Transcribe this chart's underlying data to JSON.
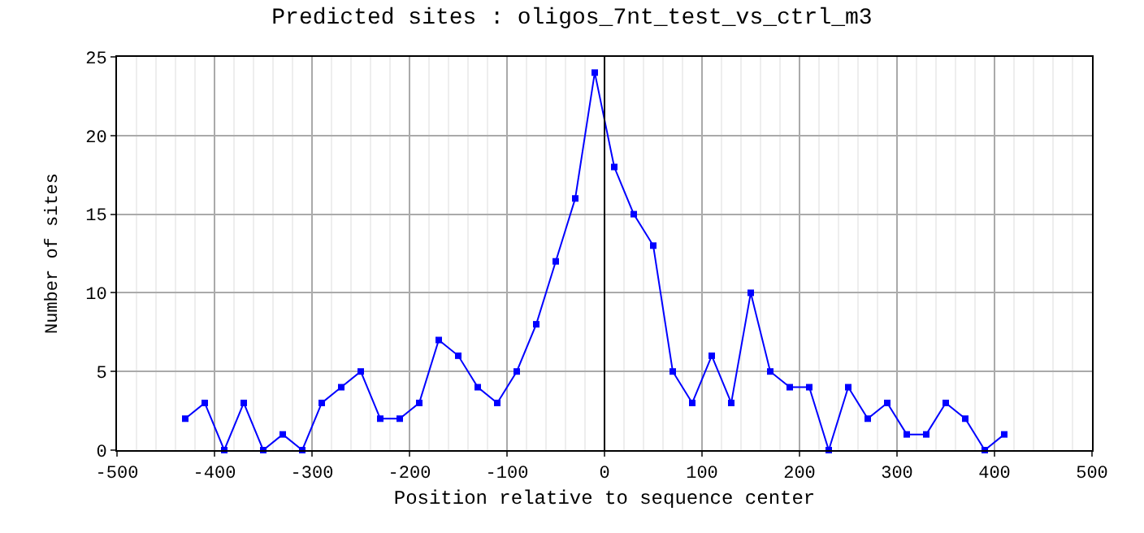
{
  "chart_data": {
    "type": "line",
    "title": "Predicted sites : oligos_7nt_test_vs_ctrl_m3",
    "xlabel": "Position relative to sequence center",
    "ylabel": "Number of sites",
    "x": [
      -430,
      -410,
      -390,
      -370,
      -350,
      -330,
      -310,
      -290,
      -270,
      -250,
      -230,
      -210,
      -190,
      -170,
      -150,
      -130,
      -110,
      -90,
      -70,
      -50,
      -30,
      -10,
      10,
      30,
      50,
      70,
      90,
      110,
      130,
      150,
      170,
      190,
      210,
      230,
      250,
      270,
      290,
      310,
      330,
      350,
      370,
      390,
      410
    ],
    "series": [
      {
        "color": "#0000ff",
        "values": [
          2,
          3,
          0,
          3,
          0,
          1,
          0,
          3,
          4,
          5,
          2,
          2,
          3,
          7,
          6,
          4,
          3,
          5,
          8,
          12,
          16,
          24,
          18,
          15,
          13,
          5,
          3,
          6,
          3,
          10,
          5,
          4,
          4,
          0,
          4,
          2,
          3,
          1,
          1,
          3,
          2,
          0,
          1
        ]
      }
    ],
    "xlim": [
      -500,
      500
    ],
    "xticks": [
      -500,
      -400,
      -300,
      -200,
      -100,
      0,
      100,
      200,
      300,
      400,
      500
    ],
    "ylim": [
      0,
      25
    ],
    "yticks": [
      0,
      5,
      10,
      15,
      20,
      25
    ],
    "ref_lines": [
      {
        "axis": "x",
        "value": 0,
        "color": "#000000"
      }
    ],
    "grid": true,
    "marker": "square",
    "line_style": "solid"
  }
}
